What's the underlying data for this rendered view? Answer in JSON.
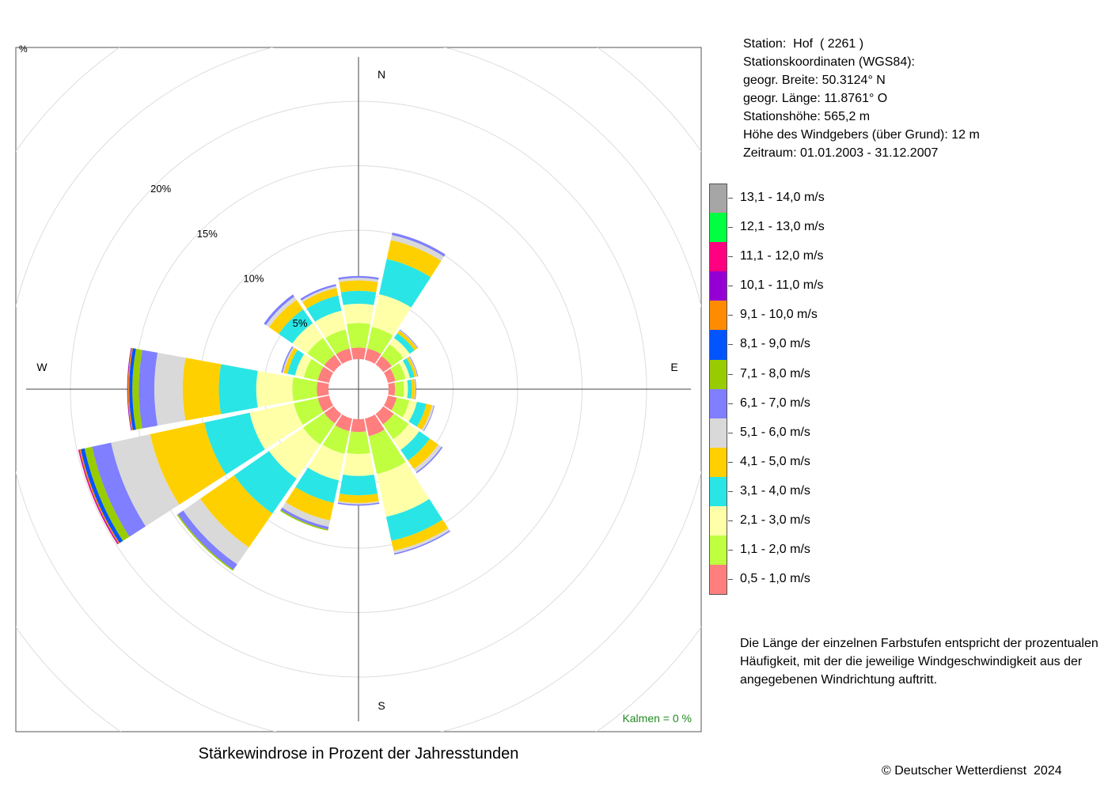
{
  "chart_data": {
    "type": "windrose",
    "title": "Stärkewindrose in Prozent der Jahresstunden",
    "directions": [
      "N",
      "NNE",
      "NE",
      "ENE",
      "E",
      "ESE",
      "SE",
      "SSE",
      "S",
      "SSW",
      "SW",
      "WSW",
      "W",
      "WNW",
      "NW",
      "NNW"
    ],
    "compass_labels": [
      "N",
      "E",
      "S",
      "W"
    ],
    "radial_ticks": [
      5,
      10,
      15,
      20
    ],
    "radial_tick_labels": [
      "5%",
      "10%",
      "15%",
      "20%"
    ],
    "corner_label": "%",
    "calm_label": "Kalmen  =  0 %",
    "speed_classes": [
      {
        "label": "0,5 - 1,0 m/s",
        "color": "#FF7F7F"
      },
      {
        "label": "1,1 - 2,0 m/s",
        "color": "#BFFF3F"
      },
      {
        "label": "2,1 - 3,0 m/s",
        "color": "#FFFFA8"
      },
      {
        "label": "3,1 - 4,0 m/s",
        "color": "#2AE5E5"
      },
      {
        "label": "4,1 - 5,0 m/s",
        "color": "#FFD000"
      },
      {
        "label": "5,1 - 6,0 m/s",
        "color": "#D9D9D9"
      },
      {
        "label": "6,1 - 7,0 m/s",
        "color": "#7F7FFF"
      },
      {
        "label": "7,1 - 8,0 m/s",
        "color": "#99CC00"
      },
      {
        "label": "8,1 - 9,0 m/s",
        "color": "#0055FF"
      },
      {
        "label": "9,1 - 10,0 m/s",
        "color": "#FF8C00"
      },
      {
        "label": "10,1 - 11,0 m/s",
        "color": "#9400D3"
      },
      {
        "label": "11,1 - 12,0 m/s",
        "color": "#FF0080"
      },
      {
        "label": "12,1 - 13,0 m/s",
        "color": "#00FF40"
      },
      {
        "label": "13,1 - 14,0 m/s",
        "color": "#A6A6A6"
      }
    ],
    "series": [
      {
        "direction": "N",
        "values": [
          0.9,
          1.9,
          1.5,
          1.0,
          0.8,
          0.2,
          0.15
        ]
      },
      {
        "direction": "NNE",
        "values": [
          0.9,
          1.7,
          2.6,
          2.8,
          1.5,
          0.4,
          0.2
        ]
      },
      {
        "direction": "NE",
        "values": [
          0.8,
          1.1,
          0.6,
          0.45,
          0.25,
          0.05,
          0.05
        ]
      },
      {
        "direction": "ENE",
        "values": [
          0.6,
          0.8,
          0.35,
          0.35,
          0.2,
          0.05,
          0.05
        ]
      },
      {
        "direction": "E",
        "values": [
          0.5,
          0.7,
          0.3,
          0.3,
          0.25,
          0.05,
          0.05
        ]
      },
      {
        "direction": "ESE",
        "values": [
          0.7,
          1.0,
          0.6,
          0.75,
          0.45,
          0.15,
          0.05
        ]
      },
      {
        "direction": "SE",
        "values": [
          1.0,
          1.4,
          1.0,
          1.0,
          0.8,
          0.3,
          0.1
        ]
      },
      {
        "direction": "SSE",
        "values": [
          1.4,
          3.0,
          3.4,
          1.9,
          0.8,
          0.2,
          0.1
        ]
      },
      {
        "direction": "S",
        "values": [
          1.0,
          1.7,
          1.7,
          1.5,
          0.6,
          0.1,
          0.1
        ]
      },
      {
        "direction": "SSW",
        "values": [
          1.0,
          1.8,
          2.1,
          1.8,
          1.4,
          0.5,
          0.2,
          0.1
        ]
      },
      {
        "direction": "SW",
        "values": [
          0.9,
          2.0,
          3.2,
          3.3,
          3.2,
          1.6,
          0.5,
          0.1
        ]
      },
      {
        "direction": "WSW",
        "values": [
          0.9,
          1.9,
          3.5,
          3.6,
          4.3,
          3.1,
          1.5,
          0.6,
          0.3,
          0.1,
          0.05,
          0.05
        ]
      },
      {
        "direction": "W",
        "values": [
          0.9,
          1.9,
          2.8,
          2.9,
          2.8,
          2.2,
          1.2,
          0.5,
          0.25,
          0.1,
          0.05
        ]
      },
      {
        "direction": "WNW",
        "values": [
          0.9,
          1.1,
          0.7,
          0.6,
          0.3,
          0.1,
          0.1
        ]
      },
      {
        "direction": "NW",
        "values": [
          0.9,
          1.6,
          1.4,
          1.3,
          0.9,
          0.3,
          0.2
        ]
      },
      {
        "direction": "NNW",
        "values": [
          0.9,
          1.5,
          1.5,
          1.2,
          0.6,
          0.15,
          0.15
        ]
      }
    ]
  },
  "station": {
    "name_line": "Station:  Hof  ( 2261 )",
    "coords_line": "Stationskoordinaten (WGS84):",
    "lat_line": "geogr. Breite: 50.3124° N",
    "lon_line": "geogr. Länge: 11.8761° O",
    "elev_line": "Stationshöhe: 565,2 m",
    "sensor_line": "Höhe des Windgebers (über Grund): 12 m",
    "period_line": "Zeitraum: 01.01.2003 - 31.12.2007"
  },
  "note": "Die Länge der einzelnen Farbstufen entspricht der prozentualen Häufigkeit, mit der die jeweilige Windgeschwindigkeit aus der angegebenen Windrichtung auftritt.",
  "copyright": "© Deutscher Wetterdienst  2024"
}
